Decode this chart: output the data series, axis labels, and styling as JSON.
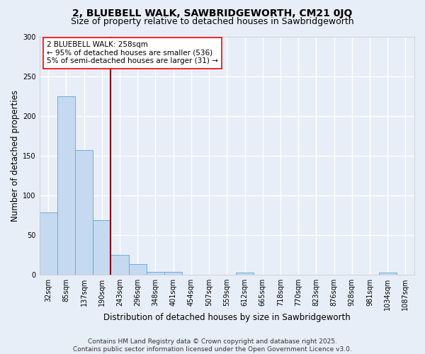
{
  "title_line1": "2, BLUEBELL WALK, SAWBRIDGEWORTH, CM21 0JQ",
  "title_line2": "Size of property relative to detached houses in Sawbridgeworth",
  "xlabel": "Distribution of detached houses by size in Sawbridgeworth",
  "ylabel": "Number of detached properties",
  "categories": [
    "32sqm",
    "85sqm",
    "137sqm",
    "190sqm",
    "243sqm",
    "296sqm",
    "348sqm",
    "401sqm",
    "454sqm",
    "507sqm",
    "559sqm",
    "612sqm",
    "665sqm",
    "718sqm",
    "770sqm",
    "823sqm",
    "876sqm",
    "928sqm",
    "981sqm",
    "1034sqm",
    "1087sqm"
  ],
  "values": [
    78,
    225,
    157,
    68,
    25,
    13,
    3,
    3,
    0,
    0,
    0,
    2,
    0,
    0,
    0,
    0,
    0,
    0,
    0,
    2,
    0
  ],
  "bar_color": "#c5d9f0",
  "bar_edge_color": "#6baed6",
  "vline_x": 3.5,
  "vline_color": "#8b0000",
  "annotation_text": "2 BLUEBELL WALK: 258sqm\n← 95% of detached houses are smaller (536)\n5% of semi-detached houses are larger (31) →",
  "annotation_box_color": "white",
  "annotation_box_edge": "red",
  "ylim": [
    0,
    300
  ],
  "yticks": [
    0,
    50,
    100,
    150,
    200,
    250,
    300
  ],
  "background_color": "#e8eef8",
  "plot_bg_color": "#e8eef8",
  "grid_color": "#ffffff",
  "footer_line1": "Contains HM Land Registry data © Crown copyright and database right 2025.",
  "footer_line2": "Contains public sector information licensed under the Open Government Licence v3.0.",
  "title_fontsize": 10,
  "subtitle_fontsize": 9,
  "axis_label_fontsize": 8.5,
  "tick_fontsize": 7,
  "annotation_fontsize": 7.5,
  "footer_fontsize": 6.5
}
